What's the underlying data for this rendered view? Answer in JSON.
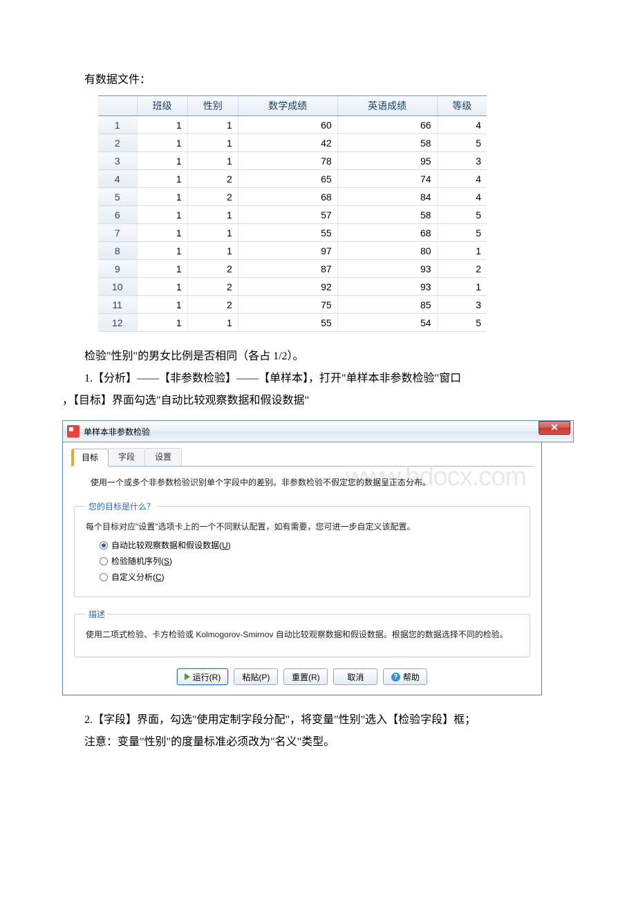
{
  "text": {
    "intro_line": "有数据文件：",
    "check_line": "检验\"性别\"的男女比例是否相同（各占 1/2）。",
    "step1_a": "1.【分析】——【非参数检验】——【单样本】，打开\"单样本非参数检验\"窗口",
    "step1_b": "，【目标】界面勾选\"自动比较观察数据和假设数据\"",
    "step2": "2.【字段】界面，勾选\"使用定制字段分配\"，将变量\"性别\"选入【检验字段】框；",
    "note": "注意：变量\"性别\"的度量标准必须改为\"名义\"类型。"
  },
  "table": {
    "columns": [
      "班级",
      "性别",
      "数学成绩",
      "英语成绩",
      "等级"
    ],
    "rows": [
      [
        1,
        1,
        60,
        66,
        4
      ],
      [
        1,
        1,
        42,
        58,
        5
      ],
      [
        1,
        1,
        78,
        95,
        3
      ],
      [
        1,
        2,
        65,
        74,
        4
      ],
      [
        1,
        2,
        68,
        84,
        4
      ],
      [
        1,
        1,
        57,
        58,
        5
      ],
      [
        1,
        1,
        55,
        68,
        5
      ],
      [
        1,
        1,
        97,
        80,
        1
      ],
      [
        1,
        2,
        87,
        93,
        2
      ],
      [
        1,
        2,
        92,
        93,
        1
      ],
      [
        1,
        2,
        75,
        85,
        3
      ],
      [
        1,
        1,
        55,
        54,
        5
      ]
    ]
  },
  "dialog": {
    "title": "单样本非参数检验",
    "tabs": [
      "目标",
      "字段",
      "设置"
    ],
    "active_tab": 0,
    "watermark": "www.bdocx.com",
    "intro": "使用一个或多个非参数检验识别单个字段中的差别。非参数检验不假定您的数据呈正态分布。",
    "group1": {
      "legend": "您的目标是什么？",
      "sub": "每个目标对应\"设置\"选项卡上的一个不同默认配置，如有需要，您可进一步自定义该配置。",
      "options": [
        {
          "label_pre": "自动比较观察数据和假设数据(",
          "key": "U",
          "label_post": ")",
          "checked": true
        },
        {
          "label_pre": "检验随机序列(",
          "key": "S",
          "label_post": ")",
          "checked": false
        },
        {
          "label_pre": "自定义分析(",
          "key": "C",
          "label_post": ")",
          "checked": false
        }
      ]
    },
    "group2": {
      "legend": "描述",
      "sub": "使用二项式检验、卡方检验或 Kolmogorov-Smirnov 自动比较观察数据和假设数据。根据您的数据选择不同的检验。"
    },
    "buttons": {
      "run": "运行(R)",
      "paste": "粘贴(P)",
      "reset": "重置(R)",
      "cancel": "取消",
      "help": "帮助"
    }
  }
}
